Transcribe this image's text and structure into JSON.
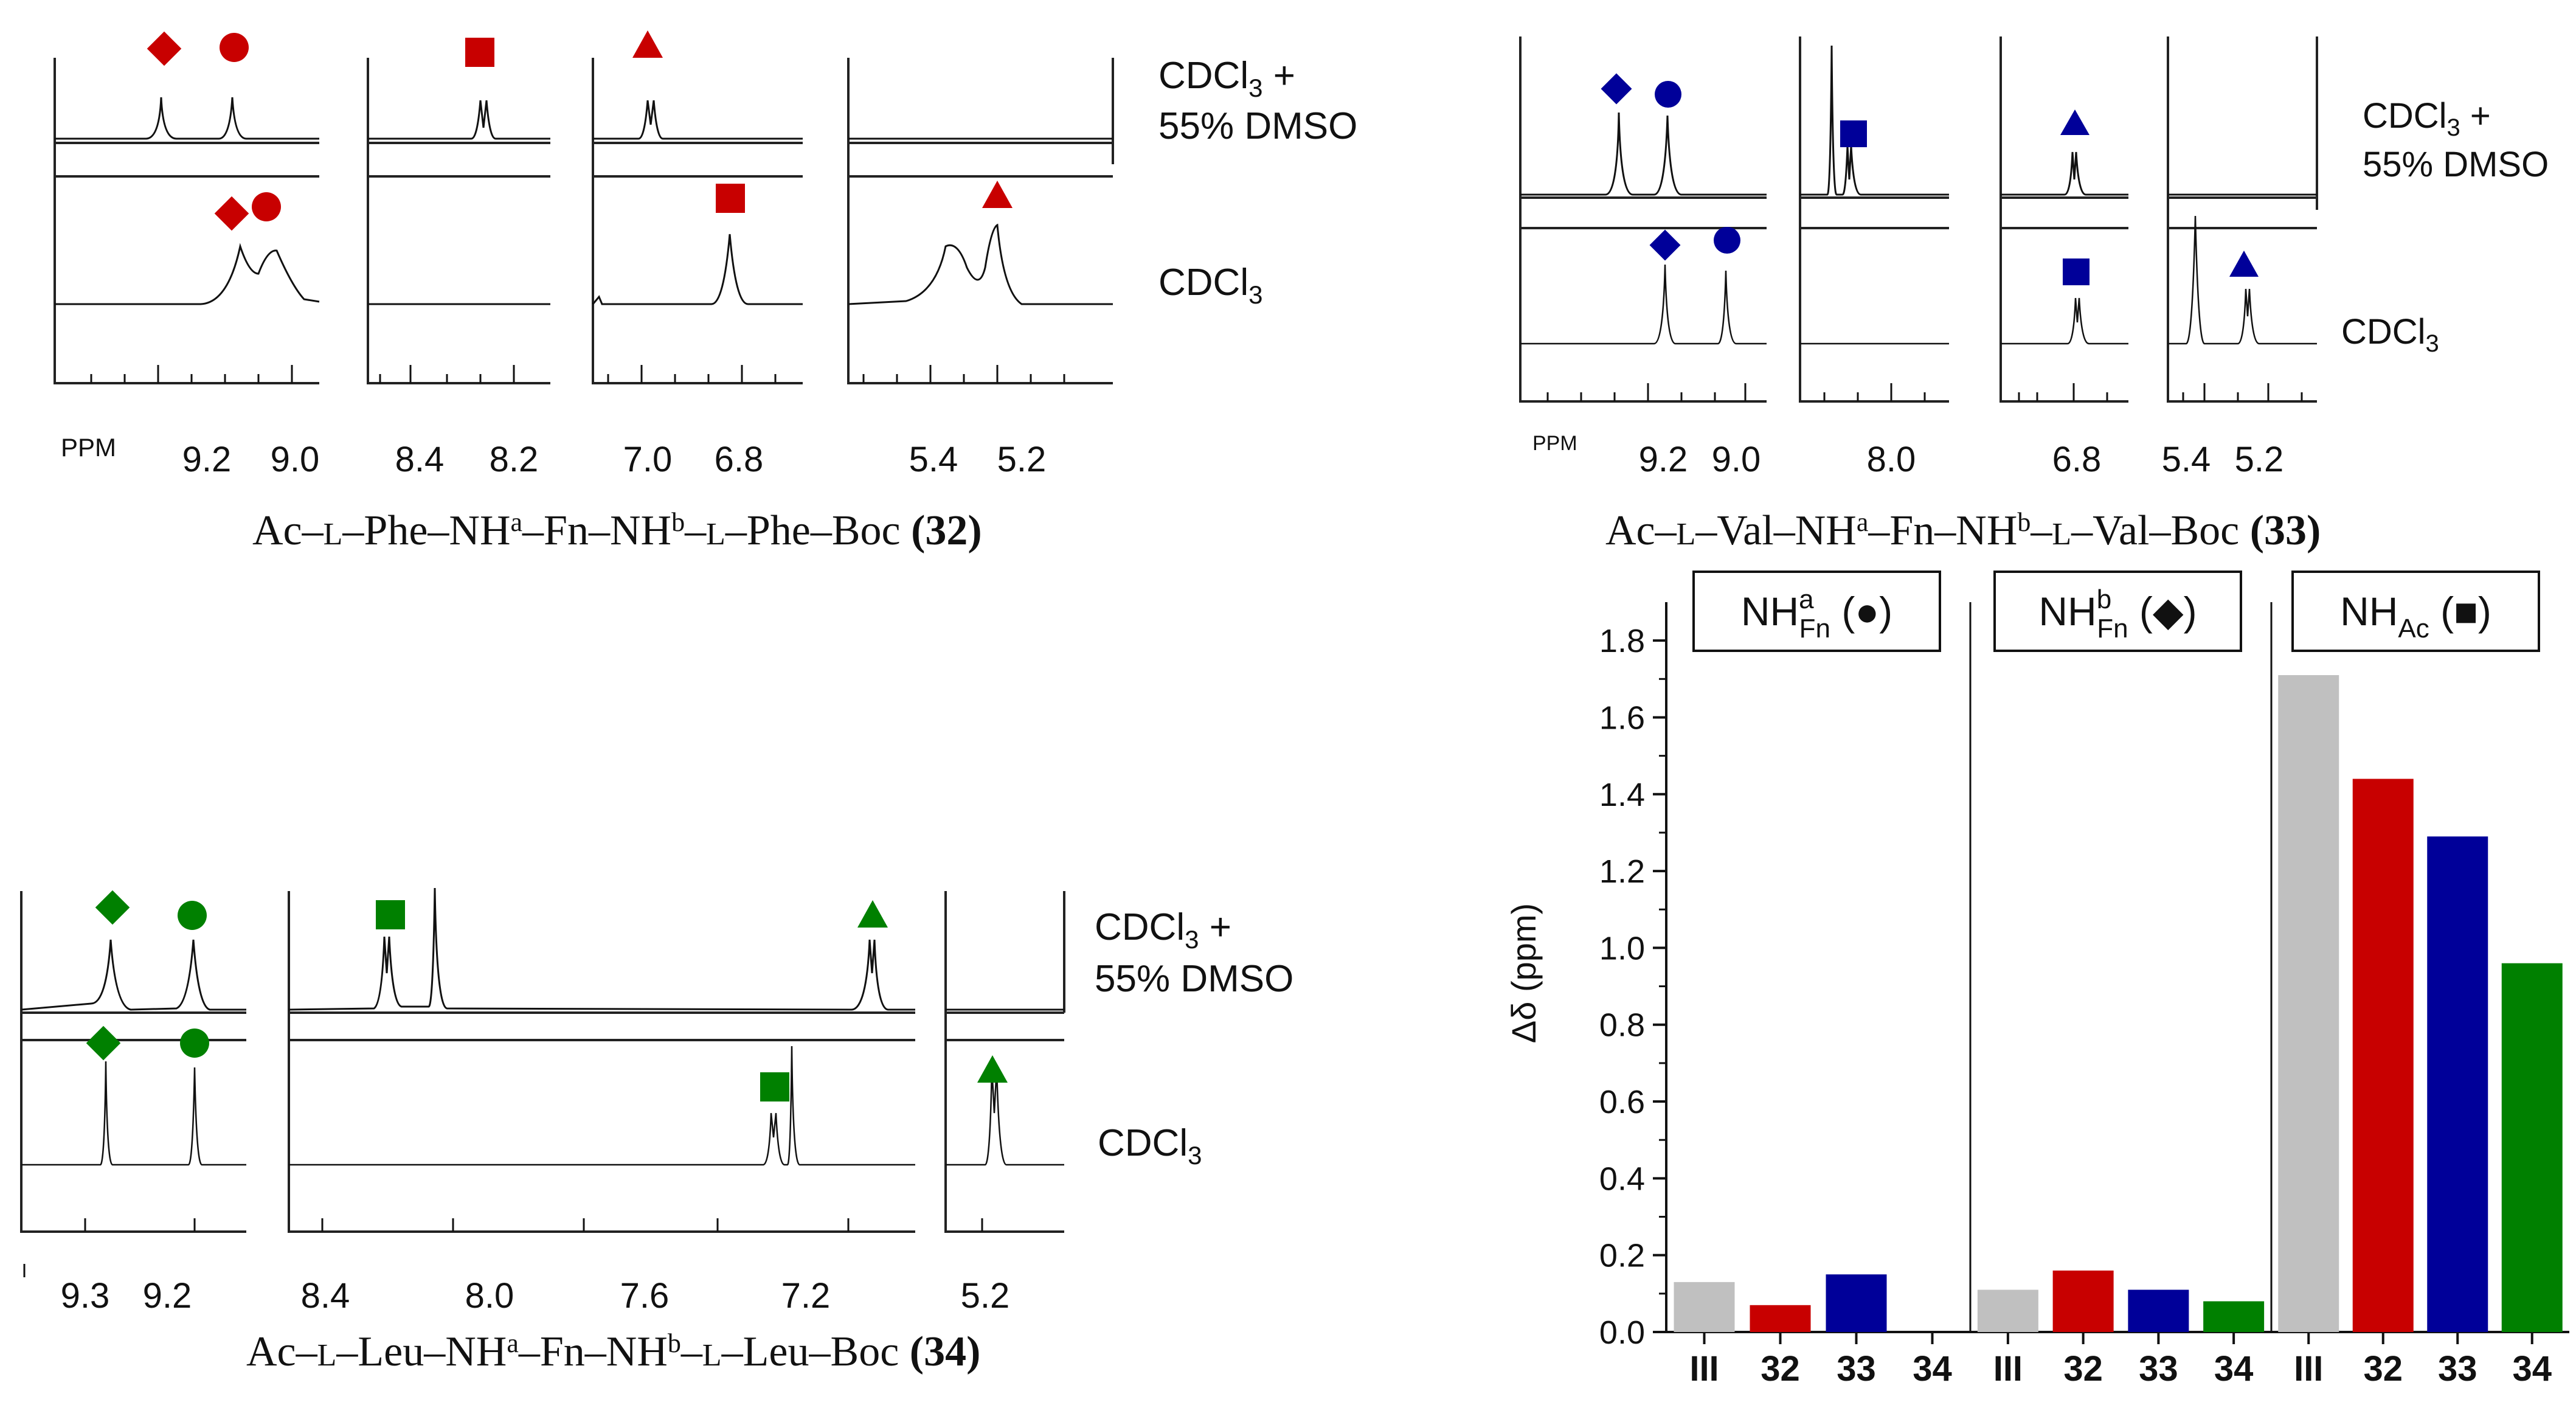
{
  "colors": {
    "red": "#c80000",
    "blue": "#000099",
    "green": "#008000",
    "gray": "#c0c0c0",
    "ink": "#111111"
  },
  "spectra": {
    "p32": {
      "ppm_label": "PPM",
      "ticks": [
        "9.2",
        "9.0",
        "8.4",
        "8.2",
        "7.0",
        "6.8",
        "5.4",
        "5.2"
      ],
      "label_top_1": "CDCl",
      "label_top_sub": "3",
      "label_top_plus": " +",
      "label_top_2": "55% DMSO",
      "label_bot": "CDCl",
      "label_bot_sub": "3",
      "compound": {
        "pre": "Ac–",
        "l1": "L",
        "mid1": "–Phe–NH",
        "sup_a": "a",
        "mid2": "–Fn–NH",
        "sup_b": "b",
        "mid3": "–",
        "l2": "L",
        "post": "–Phe–Boc ",
        "num": "(32)"
      }
    },
    "p33": {
      "ppm_label": "PPM",
      "ticks": [
        "9.2",
        "9.0",
        "8.0",
        "6.8",
        "5.4",
        "5.2"
      ],
      "label_top_1": "CDCl",
      "label_top_sub": "3",
      "label_top_plus": " +",
      "label_top_2": "55% DMSO",
      "label_bot": "CDCl",
      "label_bot_sub": "3",
      "compound": {
        "pre": "Ac–",
        "l1": "L",
        "mid1": "–Val–NH",
        "sup_a": "a",
        "mid2": "–Fn–NH",
        "sup_b": "b",
        "mid3": "–",
        "l2": "L",
        "post": "–Val–Boc ",
        "num": "(33)"
      }
    },
    "p34": {
      "ticks": [
        "9.3",
        "9.2",
        "8.4",
        "8.0",
        "7.6",
        "7.2",
        "5.2"
      ],
      "label_top_1": "CDCl",
      "label_top_sub": "3",
      "label_top_plus": " +",
      "label_top_2": "55% DMSO",
      "label_bot": "CDCl",
      "label_bot_sub": "3",
      "compound": {
        "pre": "Ac–",
        "l1": "L",
        "mid1": "–Leu–NH",
        "sup_a": "a",
        "mid2": "–Fn–NH",
        "sup_b": "b",
        "mid3": "–",
        "l2": "L",
        "post": "–Leu–Boc ",
        "num": "(34)"
      }
    }
  },
  "chart_data": {
    "type": "bar",
    "ylabel": "Δδ (ppm)",
    "ylim": [
      0,
      1.9
    ],
    "yticks": [
      "0.0",
      "0.2",
      "0.4",
      "0.6",
      "0.8",
      "1.0",
      "1.2",
      "1.4",
      "1.6",
      "1.8"
    ],
    "groups": [
      {
        "name": "NHaFn",
        "label_main": "NH",
        "label_sup": "a",
        "label_sub": "Fn",
        "symbol": "(●)"
      },
      {
        "name": "NHbFn",
        "label_main": "NH",
        "label_sup": "b",
        "label_sub": "Fn",
        "symbol": "(◆)"
      },
      {
        "name": "NHAc",
        "label_main": "NH",
        "label_sup": "",
        "label_sub": "Ac",
        "symbol": "(■)"
      }
    ],
    "categories": [
      "III",
      "32",
      "33",
      "34",
      "III",
      "32",
      "33",
      "34",
      "III",
      "32",
      "33",
      "34"
    ],
    "values": [
      0.13,
      0.07,
      0.15,
      0.0,
      0.11,
      0.16,
      0.11,
      0.08,
      1.71,
      1.44,
      1.29,
      0.96
    ],
    "bar_colors": [
      "#c0c0c0",
      "#c80000",
      "#000099",
      "#008000",
      "#c0c0c0",
      "#c80000",
      "#000099",
      "#008000",
      "#c0c0c0",
      "#c80000",
      "#000099",
      "#008000"
    ]
  }
}
